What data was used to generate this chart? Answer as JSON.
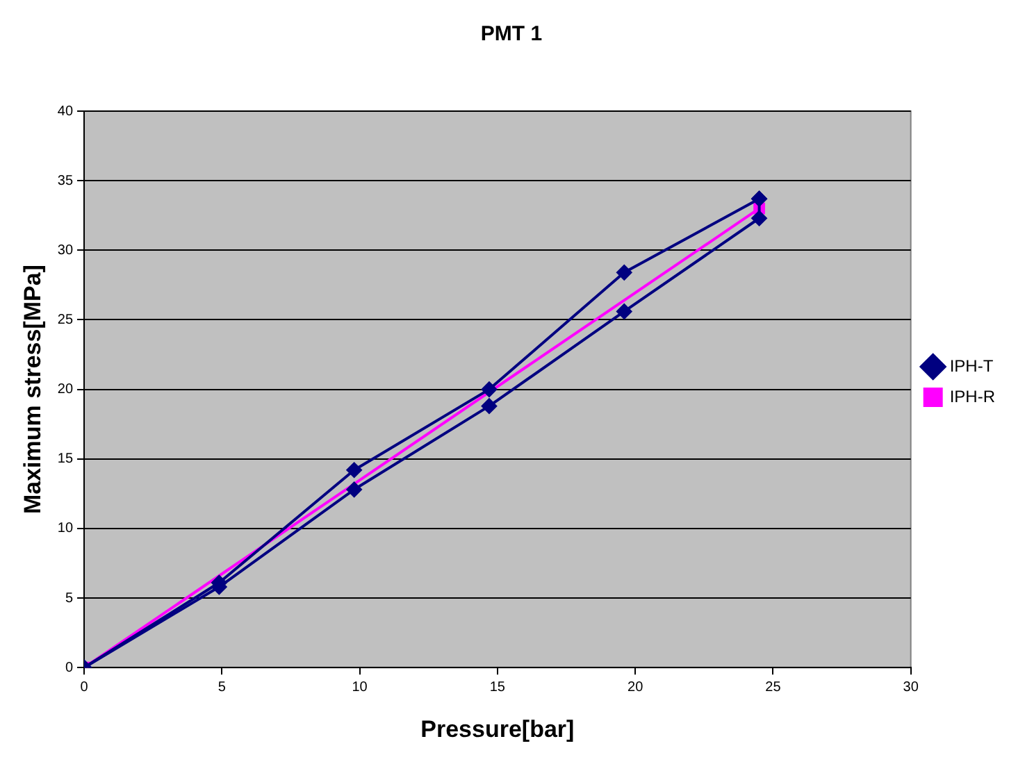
{
  "chart_data": {
    "type": "line",
    "title": "PMT 1",
    "xlabel": "Pressure[bar]",
    "ylabel": "Maximum stress[MPa]",
    "xlim": [
      0,
      30
    ],
    "xticks": [
      0,
      5,
      10,
      15,
      20,
      25,
      30
    ],
    "ylim": [
      0,
      40
    ],
    "yticks": [
      0,
      5,
      10,
      15,
      20,
      25,
      30,
      35,
      40
    ],
    "grid": "y",
    "legend": "right",
    "series": [
      {
        "name": "IPH-T",
        "color": "#000080",
        "marker": "diamond",
        "x": [
          0,
          4.9,
          9.8,
          14.7,
          19.6,
          24.5
        ],
        "values": [
          0,
          6.1,
          14.2,
          20.0,
          28.4,
          33.7
        ]
      },
      {
        "color": "#000080",
        "marker": "diamond",
        "x": [
          24.5,
          24.5,
          19.6,
          14.7,
          9.8,
          4.9,
          0
        ],
        "values": [
          33.7,
          32.3,
          25.6,
          18.8,
          12.8,
          5.8,
          0
        ]
      },
      {
        "name": "IPH-R",
        "color": "#ff00ff",
        "marker": "square",
        "x": [
          0,
          24.5
        ],
        "values": [
          0,
          33
        ]
      }
    ]
  }
}
